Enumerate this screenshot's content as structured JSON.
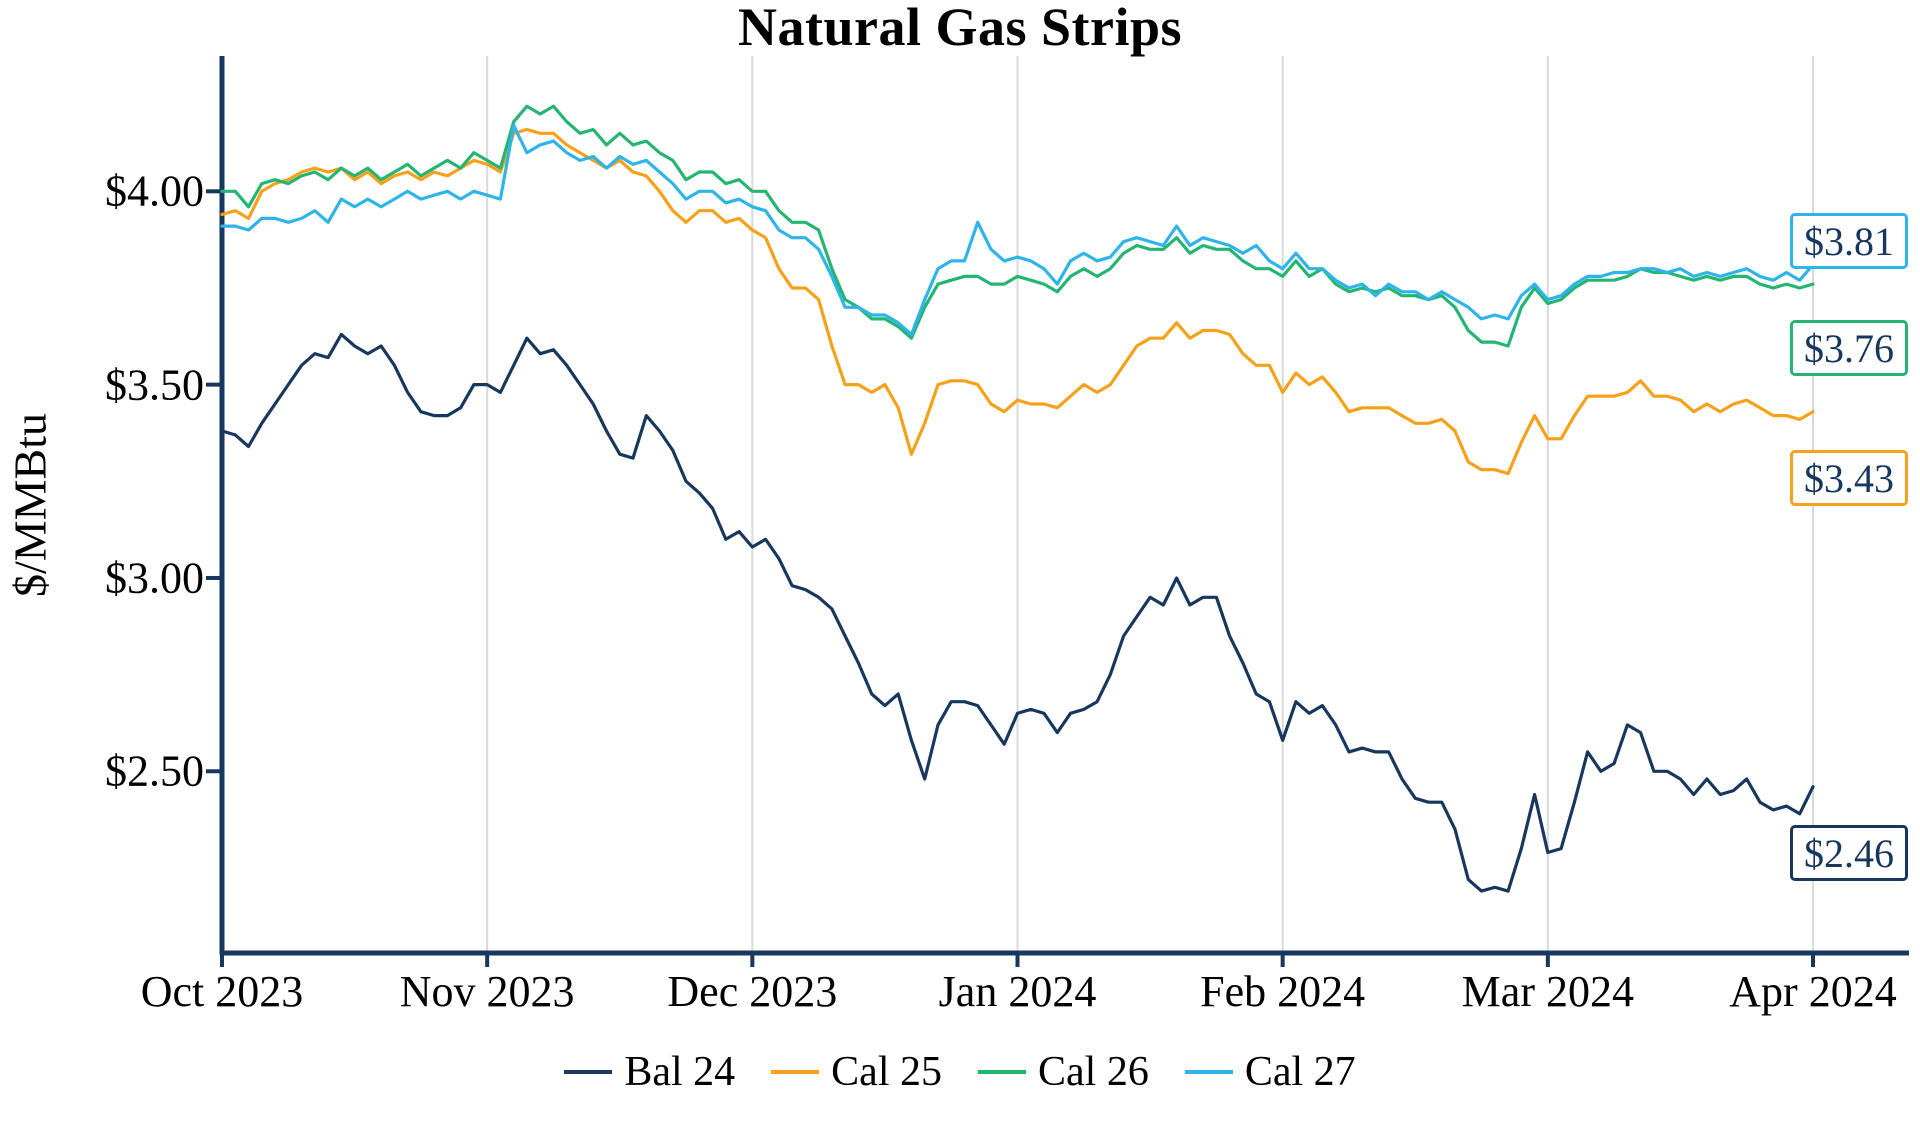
{
  "chart": {
    "title": "Natural Gas Strips",
    "ylabel": "$/MMBtu"
  },
  "chart_data": {
    "type": "line",
    "title": "Natural Gas Strips",
    "xlabel": "",
    "ylabel": "$/MMBtu",
    "x_tick_labels": [
      "Oct 2023",
      "Nov 2023",
      "Dec 2023",
      "Jan 2024",
      "Feb 2024",
      "Mar 2024",
      "Apr 2024"
    ],
    "y_tick_labels": [
      "$4.00",
      "$3.50",
      "$3.00",
      "$2.50"
    ],
    "y_tick_values": [
      4.0,
      3.5,
      3.0,
      2.5
    ],
    "ylim": [
      2.03,
      4.35
    ],
    "x_unit": "months-from-oct-2023",
    "x_step": 0.05,
    "grid": "vertical-only",
    "legend_position": "bottom",
    "axis_color": "#17375E",
    "grid_color": "#D9D9D9",
    "series": [
      {
        "name": "Bal 24",
        "color": "#17375E",
        "end_label": "$2.46",
        "values": [
          3.38,
          3.37,
          3.34,
          3.4,
          3.45,
          3.5,
          3.55,
          3.58,
          3.57,
          3.63,
          3.6,
          3.58,
          3.6,
          3.55,
          3.48,
          3.43,
          3.42,
          3.42,
          3.44,
          3.5,
          3.5,
          3.48,
          3.55,
          3.62,
          3.58,
          3.59,
          3.55,
          3.5,
          3.45,
          3.38,
          3.32,
          3.31,
          3.42,
          3.38,
          3.33,
          3.25,
          3.22,
          3.18,
          3.1,
          3.12,
          3.08,
          3.1,
          3.05,
          2.98,
          2.97,
          2.95,
          2.92,
          2.85,
          2.78,
          2.7,
          2.67,
          2.7,
          2.58,
          2.48,
          2.62,
          2.68,
          2.68,
          2.67,
          2.62,
          2.57,
          2.65,
          2.66,
          2.65,
          2.6,
          2.65,
          2.66,
          2.68,
          2.75,
          2.85,
          2.9,
          2.95,
          2.93,
          3.0,
          2.93,
          2.95,
          2.95,
          2.85,
          2.78,
          2.7,
          2.68,
          2.58,
          2.68,
          2.65,
          2.67,
          2.62,
          2.55,
          2.56,
          2.55,
          2.55,
          2.48,
          2.43,
          2.42,
          2.42,
          2.35,
          2.22,
          2.19,
          2.2,
          2.19,
          2.3,
          2.44,
          2.29,
          2.3,
          2.42,
          2.55,
          2.5,
          2.52,
          2.62,
          2.6,
          2.5,
          2.5,
          2.48,
          2.44,
          2.48,
          2.44,
          2.45,
          2.48,
          2.42,
          2.4,
          2.41,
          2.39,
          2.46
        ]
      },
      {
        "name": "Cal 25",
        "color": "#F7A11A",
        "end_label": "$3.43",
        "values": [
          3.94,
          3.95,
          3.93,
          4.0,
          4.02,
          4.03,
          4.05,
          4.06,
          4.05,
          4.06,
          4.03,
          4.05,
          4.02,
          4.04,
          4.05,
          4.03,
          4.05,
          4.04,
          4.06,
          4.08,
          4.07,
          4.05,
          4.15,
          4.16,
          4.15,
          4.15,
          4.12,
          4.1,
          4.08,
          4.06,
          4.08,
          4.05,
          4.04,
          4.0,
          3.95,
          3.92,
          3.95,
          3.95,
          3.92,
          3.93,
          3.9,
          3.88,
          3.8,
          3.75,
          3.75,
          3.72,
          3.6,
          3.5,
          3.5,
          3.48,
          3.5,
          3.44,
          3.32,
          3.4,
          3.5,
          3.51,
          3.51,
          3.5,
          3.45,
          3.43,
          3.46,
          3.45,
          3.45,
          3.44,
          3.47,
          3.5,
          3.48,
          3.5,
          3.55,
          3.6,
          3.62,
          3.62,
          3.66,
          3.62,
          3.64,
          3.64,
          3.63,
          3.58,
          3.55,
          3.55,
          3.48,
          3.53,
          3.5,
          3.52,
          3.48,
          3.43,
          3.44,
          3.44,
          3.44,
          3.42,
          3.4,
          3.4,
          3.41,
          3.38,
          3.3,
          3.28,
          3.28,
          3.27,
          3.35,
          3.42,
          3.36,
          3.36,
          3.42,
          3.47,
          3.47,
          3.47,
          3.48,
          3.51,
          3.47,
          3.47,
          3.46,
          3.43,
          3.45,
          3.43,
          3.45,
          3.46,
          3.44,
          3.42,
          3.42,
          3.41,
          3.43
        ]
      },
      {
        "name": "Cal 26",
        "color": "#24B573",
        "end_label": "$3.76",
        "values": [
          4.0,
          4.0,
          3.96,
          4.02,
          4.03,
          4.02,
          4.04,
          4.05,
          4.03,
          4.06,
          4.04,
          4.06,
          4.03,
          4.05,
          4.07,
          4.04,
          4.06,
          4.08,
          4.06,
          4.1,
          4.08,
          4.06,
          4.18,
          4.22,
          4.2,
          4.22,
          4.18,
          4.15,
          4.16,
          4.12,
          4.15,
          4.12,
          4.13,
          4.1,
          4.08,
          4.03,
          4.05,
          4.05,
          4.02,
          4.03,
          4.0,
          4.0,
          3.95,
          3.92,
          3.92,
          3.9,
          3.8,
          3.72,
          3.7,
          3.67,
          3.67,
          3.65,
          3.62,
          3.7,
          3.76,
          3.77,
          3.78,
          3.78,
          3.76,
          3.76,
          3.78,
          3.77,
          3.76,
          3.74,
          3.78,
          3.8,
          3.78,
          3.8,
          3.84,
          3.86,
          3.85,
          3.85,
          3.88,
          3.84,
          3.86,
          3.85,
          3.85,
          3.82,
          3.8,
          3.8,
          3.78,
          3.82,
          3.78,
          3.8,
          3.76,
          3.74,
          3.75,
          3.74,
          3.75,
          3.73,
          3.73,
          3.72,
          3.73,
          3.7,
          3.64,
          3.61,
          3.61,
          3.6,
          3.7,
          3.75,
          3.71,
          3.72,
          3.75,
          3.77,
          3.77,
          3.77,
          3.78,
          3.8,
          3.79,
          3.79,
          3.78,
          3.77,
          3.78,
          3.77,
          3.78,
          3.78,
          3.76,
          3.75,
          3.76,
          3.75,
          3.76
        ]
      },
      {
        "name": "Cal 27",
        "color": "#2FB4E9",
        "end_label": "$3.81",
        "values": [
          3.91,
          3.91,
          3.9,
          3.93,
          3.93,
          3.92,
          3.93,
          3.95,
          3.92,
          3.98,
          3.96,
          3.98,
          3.96,
          3.98,
          4.0,
          3.98,
          3.99,
          4.0,
          3.98,
          4.0,
          3.99,
          3.98,
          4.17,
          4.1,
          4.12,
          4.13,
          4.1,
          4.08,
          4.09,
          4.06,
          4.09,
          4.07,
          4.08,
          4.05,
          4.02,
          3.98,
          4.0,
          4.0,
          3.97,
          3.98,
          3.96,
          3.95,
          3.9,
          3.88,
          3.88,
          3.85,
          3.78,
          3.7,
          3.7,
          3.68,
          3.68,
          3.66,
          3.63,
          3.72,
          3.8,
          3.82,
          3.82,
          3.92,
          3.85,
          3.82,
          3.83,
          3.82,
          3.8,
          3.76,
          3.82,
          3.84,
          3.82,
          3.83,
          3.87,
          3.88,
          3.87,
          3.86,
          3.91,
          3.86,
          3.88,
          3.87,
          3.86,
          3.84,
          3.86,
          3.82,
          3.8,
          3.84,
          3.8,
          3.8,
          3.77,
          3.75,
          3.76,
          3.73,
          3.76,
          3.74,
          3.74,
          3.72,
          3.74,
          3.72,
          3.7,
          3.67,
          3.68,
          3.67,
          3.73,
          3.76,
          3.72,
          3.73,
          3.76,
          3.78,
          3.78,
          3.79,
          3.79,
          3.8,
          3.8,
          3.79,
          3.8,
          3.78,
          3.79,
          3.78,
          3.79,
          3.8,
          3.78,
          3.77,
          3.79,
          3.77,
          3.81
        ]
      }
    ]
  }
}
